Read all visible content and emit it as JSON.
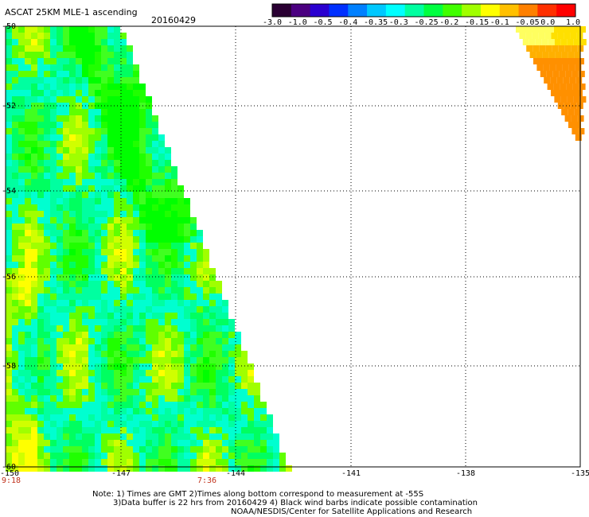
{
  "header": {
    "title": "ASCAT 25KM MLE-1 ascending",
    "date": "20160429"
  },
  "colorbar": {
    "tick_labels": [
      "-3.0",
      "-1.0",
      "-0.5",
      "-0.4",
      "-0.35",
      "-0.3",
      "-0.25",
      "-0.2",
      "-0.15",
      "-0.1",
      "-0.05",
      "0.0",
      "1.0"
    ],
    "colors": [
      "#2a0033",
      "#4b0080",
      "#2a00d0",
      "#0030ff",
      "#0080ff",
      "#00c8ff",
      "#00ffff",
      "#00ffa0",
      "#00ff40",
      "#40ff00",
      "#a0ff00",
      "#ffff00",
      "#ffc000",
      "#ff8000",
      "#ff3000",
      "#ff0000"
    ]
  },
  "map": {
    "lon_ticks": [
      "-150",
      "-147",
      "-144",
      "-141",
      "-138",
      "-135"
    ],
    "lat_ticks": [
      "-50",
      "-52",
      "-54",
      "-56",
      "-58",
      "-60"
    ],
    "time_labels": [
      "9:18",
      "7:36"
    ]
  },
  "notes": {
    "line1": "Note: 1) Times are GMT 2)Times along bottom correspond to measurement at -55S",
    "line2": "3)Data buffer is 22 hrs from 20160429 4) Black wind barbs indicate possible contamination",
    "line3": "NOAA/NESDIS/Center for Satellite Applications and Research"
  }
}
